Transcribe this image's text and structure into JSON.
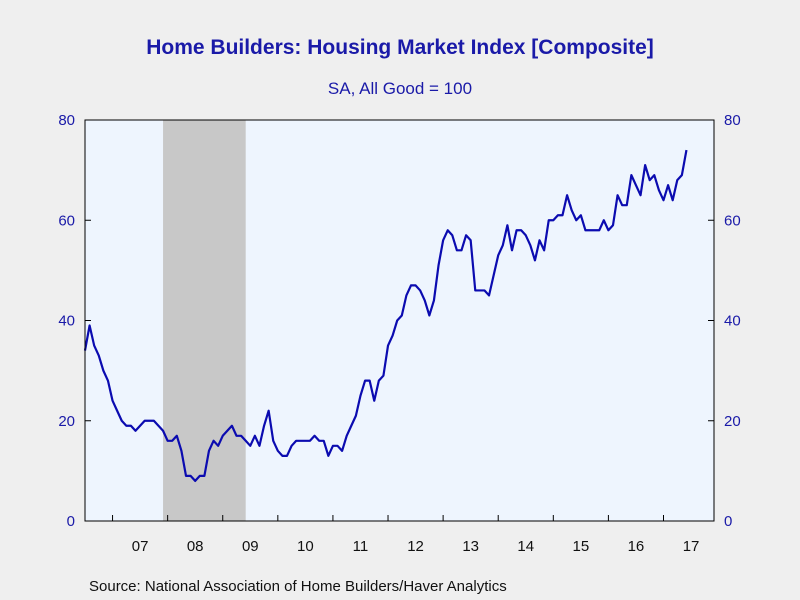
{
  "header": {
    "title": "Home Builders: Housing Market Index [Composite]",
    "subtitle": "SA, All Good = 100"
  },
  "footer": {
    "source": "Source:  National Association of Home Builders/Haver Analytics"
  },
  "colors": {
    "line": "#0b0bb0",
    "plot_background": "#eef5fe",
    "recession_shade": "#c8c8c8",
    "text": "#1a1aa8"
  },
  "chart_data": {
    "type": "line",
    "title": "Home Builders: Housing Market Index [Composite]",
    "subtitle": "SA, All Good = 100",
    "xlabel": "",
    "ylabel": "",
    "ylim": [
      0,
      80
    ],
    "yticks": [
      0,
      20,
      40,
      60,
      80
    ],
    "dual_y_axis": true,
    "grid": false,
    "x_start": "2006-07",
    "x_end": "2017-12",
    "year_labels": [
      "07",
      "08",
      "09",
      "10",
      "11",
      "12",
      "13",
      "14",
      "15",
      "16",
      "17"
    ],
    "recession": {
      "start": "2007-12",
      "end": "2009-06"
    },
    "series": [
      {
        "frequency": "monthly",
        "start": "2006-07",
        "values": [
          34,
          39,
          35,
          33,
          30,
          28,
          24,
          22,
          20,
          19,
          19,
          18,
          19,
          20,
          20,
          20,
          19,
          18,
          16,
          16,
          17,
          14,
          9,
          9,
          8,
          9,
          9,
          14,
          16,
          15,
          17,
          18,
          19,
          17,
          17,
          16,
          15,
          17,
          15,
          19,
          22,
          16,
          14,
          13,
          13,
          15,
          16,
          16,
          16,
          16,
          17,
          16,
          16,
          13,
          15,
          15,
          14,
          17,
          19,
          21,
          25,
          28,
          28,
          24,
          28,
          29,
          35,
          37,
          40,
          41,
          45,
          47,
          47,
          46,
          44,
          41,
          44,
          51,
          56,
          58,
          57,
          54,
          54,
          57,
          56,
          46,
          46,
          46,
          45,
          49,
          53,
          55,
          59,
          54,
          58,
          58,
          57,
          55,
          52,
          56,
          54,
          60,
          60,
          61,
          61,
          65,
          62,
          60,
          61,
          58,
          58,
          58,
          58,
          60,
          58,
          59,
          65,
          63,
          63,
          69,
          67,
          65,
          71,
          68,
          69,
          66,
          64,
          67,
          64,
          68,
          69,
          74
        ]
      }
    ]
  }
}
